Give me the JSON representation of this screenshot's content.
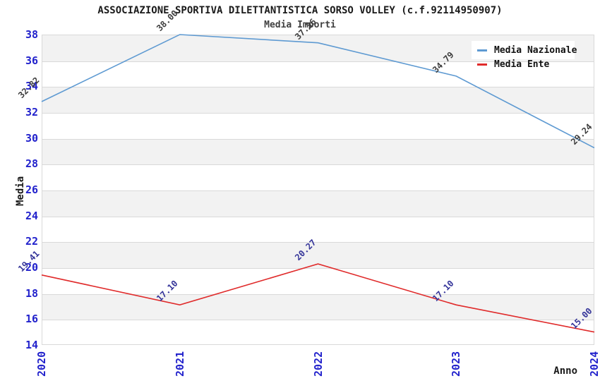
{
  "title": "ASSOCIAZIONE SPORTIVA DILETTANTISTICA SORSO VOLLEY (c.f.92114950907)",
  "subtitle": "Media Importi",
  "ylabel": "Media",
  "xlabel": "Anno",
  "colors": {
    "tick_blue": "#2222cc",
    "band_gray": "#f2f2f2",
    "grid_gray": "#d9d9d9",
    "title_black": "#1a1a1a",
    "subtitle_gray": "#404040"
  },
  "chart_data": {
    "type": "line",
    "categories": [
      "2020",
      "2021",
      "2022",
      "2023",
      "2024"
    ],
    "series": [
      {
        "name": "Media Nazionale",
        "color": "#5e9ad2",
        "label_color": "#3d3d3d",
        "values": [
          32.82,
          38.0,
          37.36,
          34.79,
          29.24
        ]
      },
      {
        "name": "Media Ente",
        "color": "#e02b2b",
        "label_color": "#343499",
        "values": [
          19.41,
          17.1,
          20.27,
          17.1,
          15.0
        ]
      }
    ],
    "title": "ASSOCIAZIONE SPORTIVA DILETTANTISTICA SORSO VOLLEY (c.f.92114950907)",
    "xlabel": "Anno",
    "ylabel": "Media",
    "ylim": [
      14,
      38
    ],
    "ytick_step": 2,
    "yticks": [
      14,
      16,
      18,
      20,
      22,
      24,
      26,
      28,
      30,
      32,
      34,
      36,
      38
    ],
    "grid": "horizontal-bands-alternating",
    "legend_position": "top-right",
    "point_labels_decimals": 2
  }
}
